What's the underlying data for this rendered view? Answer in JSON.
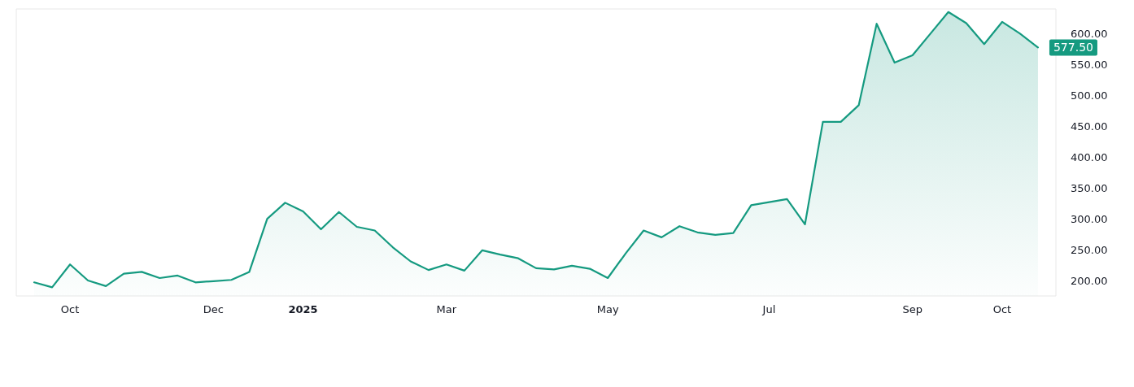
{
  "chart_data": {
    "type": "area",
    "x": [
      "2024-09-23",
      "2024-09-30",
      "2024-10-07",
      "2024-10-14",
      "2024-10-21",
      "2024-10-28",
      "2024-11-04",
      "2024-11-11",
      "2024-11-18",
      "2024-11-25",
      "2024-12-02",
      "2024-12-09",
      "2024-12-16",
      "2024-12-23",
      "2024-12-30",
      "2025-01-06",
      "2025-01-13",
      "2025-01-20",
      "2025-01-27",
      "2025-02-03",
      "2025-02-10",
      "2025-02-17",
      "2025-02-24",
      "2025-03-03",
      "2025-03-10",
      "2025-03-17",
      "2025-03-24",
      "2025-03-31",
      "2025-04-07",
      "2025-04-14",
      "2025-04-21",
      "2025-04-28",
      "2025-05-05",
      "2025-05-12",
      "2025-05-19",
      "2025-05-26",
      "2025-06-02",
      "2025-06-09",
      "2025-06-16",
      "2025-06-23",
      "2025-06-30",
      "2025-07-07",
      "2025-07-14",
      "2025-07-21",
      "2025-07-28",
      "2025-08-04",
      "2025-08-11",
      "2025-08-18",
      "2025-08-25",
      "2025-09-01",
      "2025-09-08",
      "2025-09-15",
      "2025-09-22",
      "2025-09-29",
      "2025-10-06",
      "2025-10-13",
      "2025-10-20"
    ],
    "series": [
      {
        "color": "#159a80",
        "values": [
          197,
          189,
          226,
          200,
          191,
          211,
          214,
          204,
          208,
          197,
          199,
          201,
          214,
          300,
          326,
          312,
          283,
          311,
          287,
          281,
          254,
          231,
          217,
          226,
          216,
          249,
          242,
          236,
          220,
          218,
          224,
          219,
          204,
          244,
          281,
          270,
          288,
          278,
          274,
          277,
          322,
          327,
          332,
          291,
          457,
          457,
          484,
          616,
          553,
          565,
          600,
          635,
          617,
          583,
          619,
          600,
          577.5
        ],
        "value_labels": [
          null,
          null,
          null,
          null,
          null,
          null,
          null,
          null,
          null,
          null,
          null,
          null,
          null,
          null,
          null,
          null,
          null,
          null,
          null,
          null,
          null,
          null,
          null,
          null,
          null,
          null,
          null,
          null,
          null,
          null,
          null,
          null,
          null,
          null,
          null,
          null,
          null,
          null,
          null,
          null,
          null,
          null,
          null,
          null,
          null,
          null,
          null,
          null,
          null,
          null,
          null,
          null,
          null,
          null,
          null,
          null,
          "577.50"
        ]
      }
    ],
    "xlim": [
      "2024-09-16",
      "2025-10-27"
    ],
    "xticks": [
      {
        "value": "2024-10-07",
        "label": "Oct"
      },
      {
        "value": "2024-12-02",
        "label": "Dec"
      },
      {
        "value": "2025-01-06",
        "label": "2025"
      },
      {
        "value": "2025-03-03",
        "label": "Mar"
      },
      {
        "value": "2025-05-05",
        "label": "May"
      },
      {
        "value": "2025-07-07",
        "label": "Jul"
      },
      {
        "value": "2025-09-01",
        "label": "Sep"
      },
      {
        "value": "2025-10-06",
        "label": "Oct"
      }
    ],
    "ylim": [
      175,
      640
    ],
    "yticks": [
      {
        "value": 200,
        "label": "200.00"
      },
      {
        "value": 250,
        "label": "250.00"
      },
      {
        "value": 300,
        "label": "300.00"
      },
      {
        "value": 350,
        "label": "350.00"
      },
      {
        "value": 400,
        "label": "400.00"
      },
      {
        "value": 450,
        "label": "450.00"
      },
      {
        "value": 500,
        "label": "500.00"
      },
      {
        "value": 550,
        "label": "550.00"
      },
      {
        "value": 600,
        "label": "600.00"
      }
    ],
    "grid": false,
    "marker": "none",
    "line_style": "solid"
  }
}
